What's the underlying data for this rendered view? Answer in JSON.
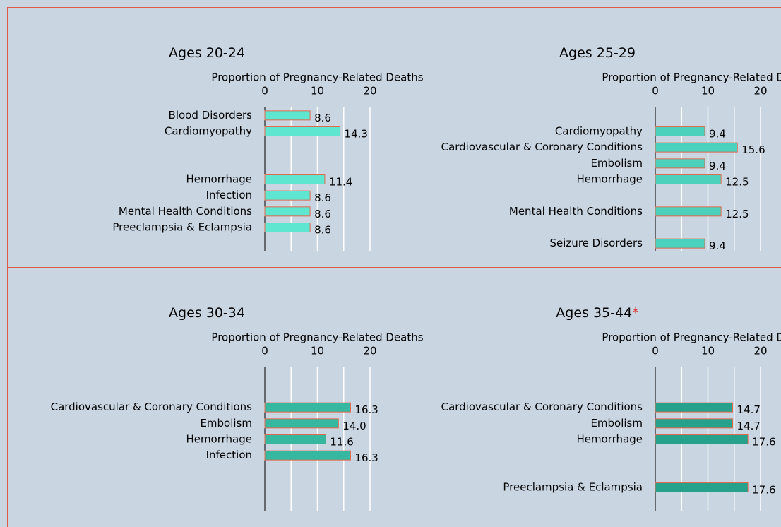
{
  "chart_data": [
    {
      "type": "hbar",
      "title": "Ages 20-24",
      "x_label": "Proportion of Pregnancy-Related Deaths",
      "categories": [
        "Blood Disorders",
        "Cardiomyopathy",
        null,
        null,
        "Hemorrhage",
        "Infection",
        "Mental Health Conditions",
        "Preeclampsia & Eclampsia",
        null
      ],
      "values": [
        8.6,
        14.3,
        null,
        null,
        11.4,
        8.6,
        8.6,
        8.6,
        null
      ],
      "color": "#5fe6d0",
      "xlim": [
        0,
        20
      ],
      "xticks": [
        0,
        10,
        20
      ],
      "xminor": [
        5,
        15
      ],
      "grid": true
    },
    {
      "type": "hbar",
      "title": "Ages 25-29",
      "x_label": "Proportion of Pregnancy-Related Deaths",
      "categories": [
        null,
        "Cardiomyopathy",
        "Cardiovascular & Coronary Conditions",
        "Embolism",
        "Hemorrhage",
        null,
        "Mental Health Conditions",
        null,
        "Seizure Disorders"
      ],
      "values": [
        null,
        9.4,
        15.6,
        9.4,
        12.5,
        null,
        12.5,
        null,
        9.4
      ],
      "color": "#4cd2bc",
      "xlim": [
        0,
        20
      ],
      "xticks": [
        0,
        10,
        20
      ],
      "xminor": [
        5,
        15
      ],
      "grid": true
    },
    {
      "type": "hbar",
      "title": "Ages 30-34",
      "x_label": "Proportion of Pregnancy-Related Deaths",
      "categories": [
        null,
        null,
        "Cardiovascular & Coronary Conditions",
        "Embolism",
        "Hemorrhage",
        "Infection",
        null,
        null,
        null
      ],
      "values": [
        null,
        null,
        16.3,
        14,
        11.6,
        16.3,
        null,
        null,
        null
      ],
      "value_labels": [
        null,
        null,
        "16.3",
        "14.0",
        "11.6",
        "16.3",
        null,
        null,
        null
      ],
      "color": "#36b7a0",
      "xlim": [
        0,
        20
      ],
      "xticks": [
        0,
        10,
        20
      ],
      "xminor": [
        5,
        15
      ],
      "grid": true
    },
    {
      "type": "hbar",
      "title": "Ages 35-44",
      "title_marker": "*",
      "x_label": "Proportion of Pregnancy-Related Deaths",
      "categories": [
        null,
        null,
        "Cardiovascular & Coronary Conditions",
        "Embolism",
        "Hemorrhage",
        null,
        null,
        "Preeclampsia & Eclampsia",
        null
      ],
      "values": [
        null,
        null,
        14.7,
        14.7,
        17.6,
        null,
        null,
        17.6,
        null
      ],
      "color": "#26a18b",
      "xlim": [
        0,
        20
      ],
      "xticks": [
        0,
        10,
        20
      ],
      "xminor": [
        5,
        15
      ],
      "grid": true
    }
  ]
}
